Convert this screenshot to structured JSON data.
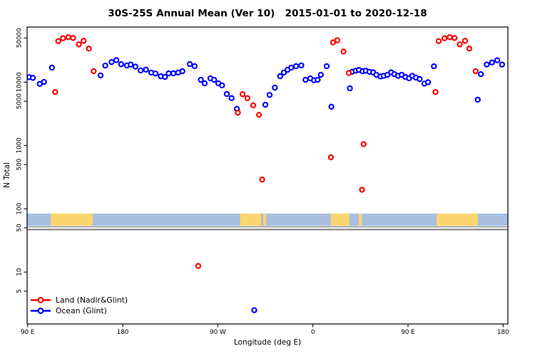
{
  "title": "30S-25S Annual Mean (Ver 10)   2015-01-01 to 2020-12-18",
  "chart_data": {
    "type": "scatter",
    "title": "30S-25S Annual Mean (Ver 10)   2015-01-01 to 2020-12-18",
    "xlabel": "Longitude (deg E)",
    "ylabel": "N Total",
    "x_axis": "longitude wrapped, degrees East continuous from 90 to 540",
    "x_range": [
      90,
      540
    ],
    "y_scale": "log10",
    "y_range": [
      1.5,
      74000
    ],
    "grid": false,
    "legend_position": "bottom-left",
    "x_ticks": [
      {
        "lon": 90,
        "label": "90 E"
      },
      {
        "lon": 180,
        "label": "180"
      },
      {
        "lon": 270,
        "label": "90 W"
      },
      {
        "lon": 360,
        "label": "0"
      },
      {
        "lon": 450,
        "label": "90 E"
      },
      {
        "lon": 540,
        "label": "180"
      }
    ],
    "y_ticks": [
      {
        "value": 5,
        "label": "5"
      },
      {
        "value": 10,
        "label": "10"
      },
      {
        "value": 50,
        "label": "50"
      },
      {
        "value": 100,
        "label": "100"
      },
      {
        "value": 500,
        "label": "500"
      },
      {
        "value": 1000,
        "label": "1000"
      },
      {
        "value": 5000,
        "label": "5000"
      },
      {
        "value": 10000,
        "label": "10000"
      },
      {
        "value": 50000,
        "label": "50000"
      }
    ],
    "legend": [
      {
        "name": "Land (Nadir&Glint)",
        "color": "#ff0000"
      },
      {
        "name": "Ocean (Glint)",
        "color": "#0000ff"
      }
    ],
    "reference_lines": [
      {
        "value": 52,
        "color": "#7a7a7a",
        "width": 1.3
      },
      {
        "value": 47,
        "color": "#7a7a7a",
        "width": 2.0
      }
    ],
    "map_strip": {
      "ocean_color": "#a9bfdf",
      "land_color": "#fbd56d",
      "n_top": 84,
      "n_bottom": 54,
      "land_patches_lon": [
        [
          112,
          151.5
        ],
        [
          291,
          311
        ],
        [
          313,
          316
        ],
        [
          377,
          394.5
        ],
        [
          403.5,
          406.5
        ],
        [
          477,
          516
        ]
      ]
    },
    "series": [
      {
        "name": "Ocean (Glint)",
        "color": "#0000ff",
        "points": [
          [
            91.5,
            12000
          ],
          [
            95,
            11700
          ],
          [
            101.5,
            9400
          ],
          [
            105.5,
            10100
          ],
          [
            113,
            17000
          ],
          [
            159,
            12800
          ],
          [
            163.5,
            18300
          ],
          [
            169.5,
            20800
          ],
          [
            174,
            22300
          ],
          [
            178.5,
            19200
          ],
          [
            184,
            18400
          ],
          [
            187.5,
            19000
          ],
          [
            192,
            17600
          ],
          [
            197,
            15300
          ],
          [
            202,
            15800
          ],
          [
            207,
            14200
          ],
          [
            211,
            13700
          ],
          [
            216,
            12400
          ],
          [
            220,
            12100
          ],
          [
            223.5,
            13800
          ],
          [
            228,
            13800
          ],
          [
            232.5,
            14200
          ],
          [
            236.5,
            14900
          ],
          [
            243.5,
            19300
          ],
          [
            248,
            17900
          ],
          [
            254,
            10900
          ],
          [
            257.5,
            9600
          ],
          [
            263,
            11500
          ],
          [
            266.5,
            10900
          ],
          [
            270.5,
            9600
          ],
          [
            274,
            8900
          ],
          [
            278.5,
            6500
          ],
          [
            283,
            5600
          ],
          [
            288,
            3800
          ],
          [
            304.5,
            2.5
          ],
          [
            315,
            4400
          ],
          [
            319,
            6300
          ],
          [
            324,
            8200
          ],
          [
            329,
            12400
          ],
          [
            332.5,
            14200
          ],
          [
            336,
            15700
          ],
          [
            339.5,
            17000
          ],
          [
            344,
            17900
          ],
          [
            349,
            18400
          ],
          [
            353,
            10900
          ],
          [
            357.5,
            11500
          ],
          [
            361,
            10700
          ],
          [
            364.5,
            10900
          ],
          [
            367.5,
            13100
          ],
          [
            373,
            17900
          ],
          [
            377.5,
            4100
          ],
          [
            395,
            8000
          ],
          [
            397,
            14600
          ],
          [
            400.5,
            15200
          ],
          [
            403.5,
            15600
          ],
          [
            407,
            14900
          ],
          [
            410,
            15200
          ],
          [
            413.5,
            14600
          ],
          [
            417,
            14300
          ],
          [
            420,
            13100
          ],
          [
            424,
            12300
          ],
          [
            427,
            12600
          ],
          [
            430.5,
            13100
          ],
          [
            434,
            14300
          ],
          [
            437,
            13400
          ],
          [
            440.5,
            12600
          ],
          [
            444,
            13100
          ],
          [
            447.5,
            12100
          ],
          [
            451,
            11500
          ],
          [
            454,
            12600
          ],
          [
            457.5,
            11800
          ],
          [
            461,
            11200
          ],
          [
            465.5,
            9500
          ],
          [
            469,
            10000
          ],
          [
            474.5,
            17800
          ],
          [
            516,
            5300
          ],
          [
            519,
            13400
          ],
          [
            524.5,
            19000
          ],
          [
            529.5,
            20500
          ],
          [
            534.5,
            22200
          ],
          [
            539,
            19000
          ]
        ]
      },
      {
        "name": "Land (Nadir&Glint)",
        "color": "#ff0000",
        "points": [
          [
            116,
            7000
          ],
          [
            119,
            44500
          ],
          [
            123.5,
            49500
          ],
          [
            128.5,
            51500
          ],
          [
            133,
            50000
          ],
          [
            138.5,
            39500
          ],
          [
            143,
            45000
          ],
          [
            148,
            34000
          ],
          [
            152.5,
            14900
          ],
          [
            251.5,
            12.5
          ],
          [
            289,
            3300
          ],
          [
            293.5,
            6450
          ],
          [
            298,
            5600
          ],
          [
            303.5,
            4300
          ],
          [
            309,
            3050
          ],
          [
            312,
            290
          ],
          [
            377,
            650
          ],
          [
            379,
            42500
          ],
          [
            383,
            46000
          ],
          [
            389,
            30500
          ],
          [
            394,
            14000
          ],
          [
            406.5,
            200
          ],
          [
            408,
            1050
          ],
          [
            476,
            7000
          ],
          [
            479,
            44500
          ],
          [
            484.5,
            49500
          ],
          [
            489.5,
            51500
          ],
          [
            494,
            50000
          ],
          [
            499,
            39500
          ],
          [
            504,
            45000
          ],
          [
            508,
            34000
          ],
          [
            514,
            14900
          ]
        ]
      }
    ]
  }
}
